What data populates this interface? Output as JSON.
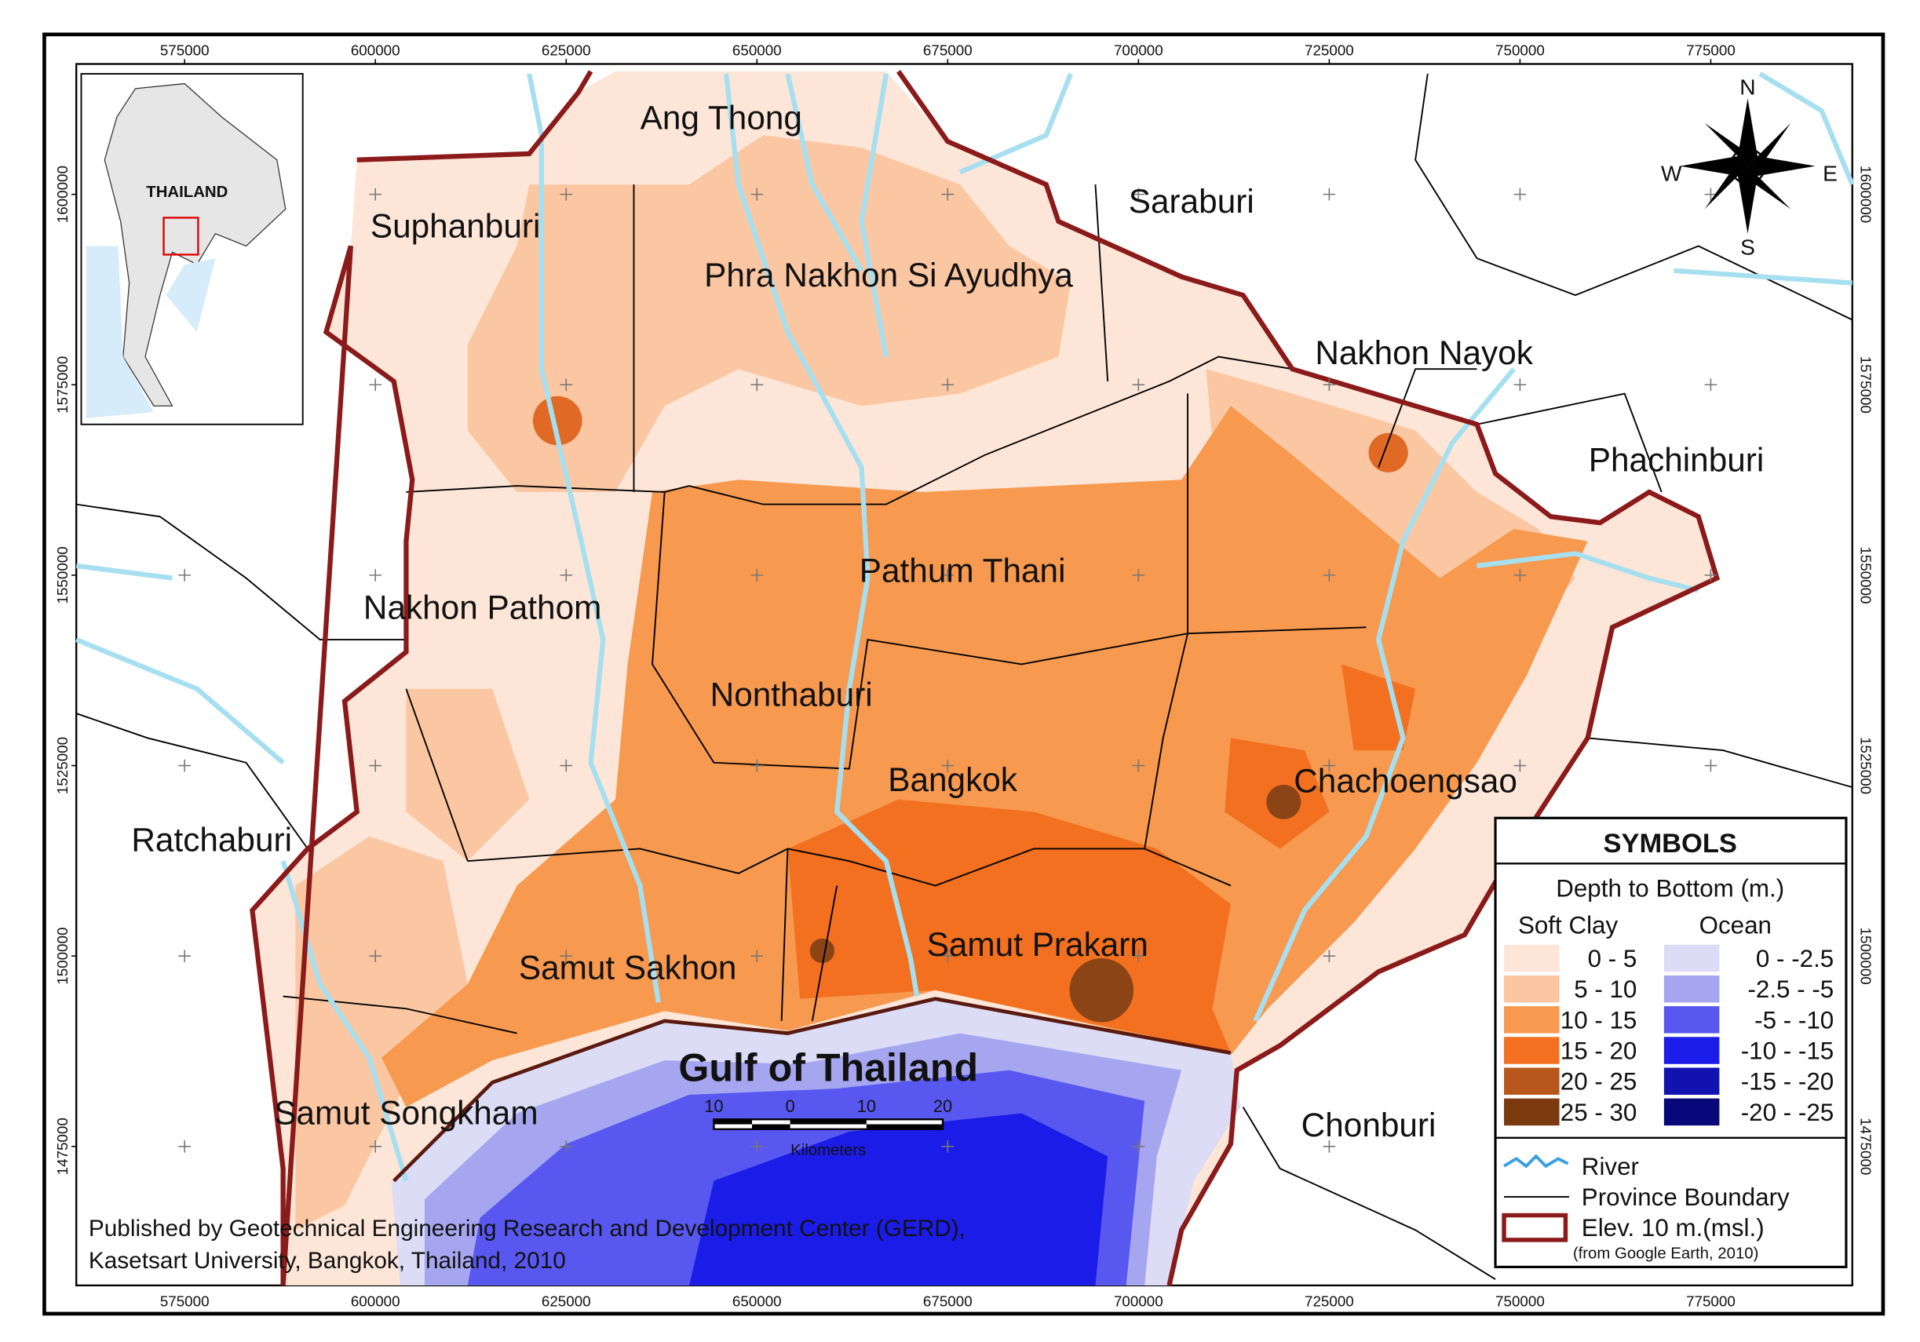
{
  "grid": {
    "xticks": [
      575000,
      600000,
      625000,
      650000,
      675000,
      700000,
      725000,
      750000,
      775000
    ],
    "yticks": [
      1600000,
      1575000,
      1550000,
      1525000,
      1500000,
      1475000
    ]
  },
  "inset": {
    "label": "THAILAND"
  },
  "provinces": [
    "Ang Thong",
    "Suphanburi",
    "Saraburi",
    "Phra Nakhon Si Ayudhya",
    "Nakhon Nayok",
    "Phachinburi",
    "Pathum Thani",
    "Nakhon Pathom",
    "Nonthaburi",
    "Bangkok",
    "Chachoengsao",
    "Ratchaburi",
    "Samut Prakarn",
    "Samut Sakhon",
    "Gulf of Thailand",
    "Samut Songkham",
    "Chonburi"
  ],
  "compass": {
    "n": "N",
    "s": "S",
    "e": "E",
    "w": "W"
  },
  "scale_bar": {
    "labels": [
      10,
      0,
      10,
      20
    ],
    "unit": "Kilometers"
  },
  "legend": {
    "title": "SYMBOLS",
    "subtitle": "Depth to Bottom (m.)",
    "soft_clay": {
      "title": "Soft Clay",
      "items": [
        {
          "label": "0 - 5",
          "color": "#fde6d8"
        },
        {
          "label": "5 - 10",
          "color": "#fbc6a2"
        },
        {
          "label": "10 - 15",
          "color": "#f7994f"
        },
        {
          "label": "15 - 20",
          "color": "#f27020"
        },
        {
          "label": "20 - 25",
          "color": "#b8571c"
        },
        {
          "label": "25 - 30",
          "color": "#7b3a0e"
        }
      ]
    },
    "ocean": {
      "title": "Ocean",
      "items": [
        {
          "label": "0 - -2.5",
          "color": "#dcdcf6"
        },
        {
          "label": "-2.5 - -5",
          "color": "#a6a6f0"
        },
        {
          "label": "-5 - -10",
          "color": "#5858f0"
        },
        {
          "label": "-10 - -15",
          "color": "#1c1ce8"
        },
        {
          "label": "-15 - -20",
          "color": "#1212b0"
        },
        {
          "label": "-20 - -25",
          "color": "#08087a"
        }
      ]
    },
    "lines": [
      {
        "label": "River",
        "color": "#3aa0e0"
      },
      {
        "label": "Province Boundary",
        "color": "#000000"
      },
      {
        "label": "Elev. 10 m.(msl.)",
        "color": "#8b1a1a"
      }
    ],
    "note": "(from Google Earth, 2010)"
  },
  "credit": [
    "Published by Geotechnical Engineering Research and Development Center (GERD),",
    "Kasetsart University, Bangkok, Thailand, 2010"
  ]
}
